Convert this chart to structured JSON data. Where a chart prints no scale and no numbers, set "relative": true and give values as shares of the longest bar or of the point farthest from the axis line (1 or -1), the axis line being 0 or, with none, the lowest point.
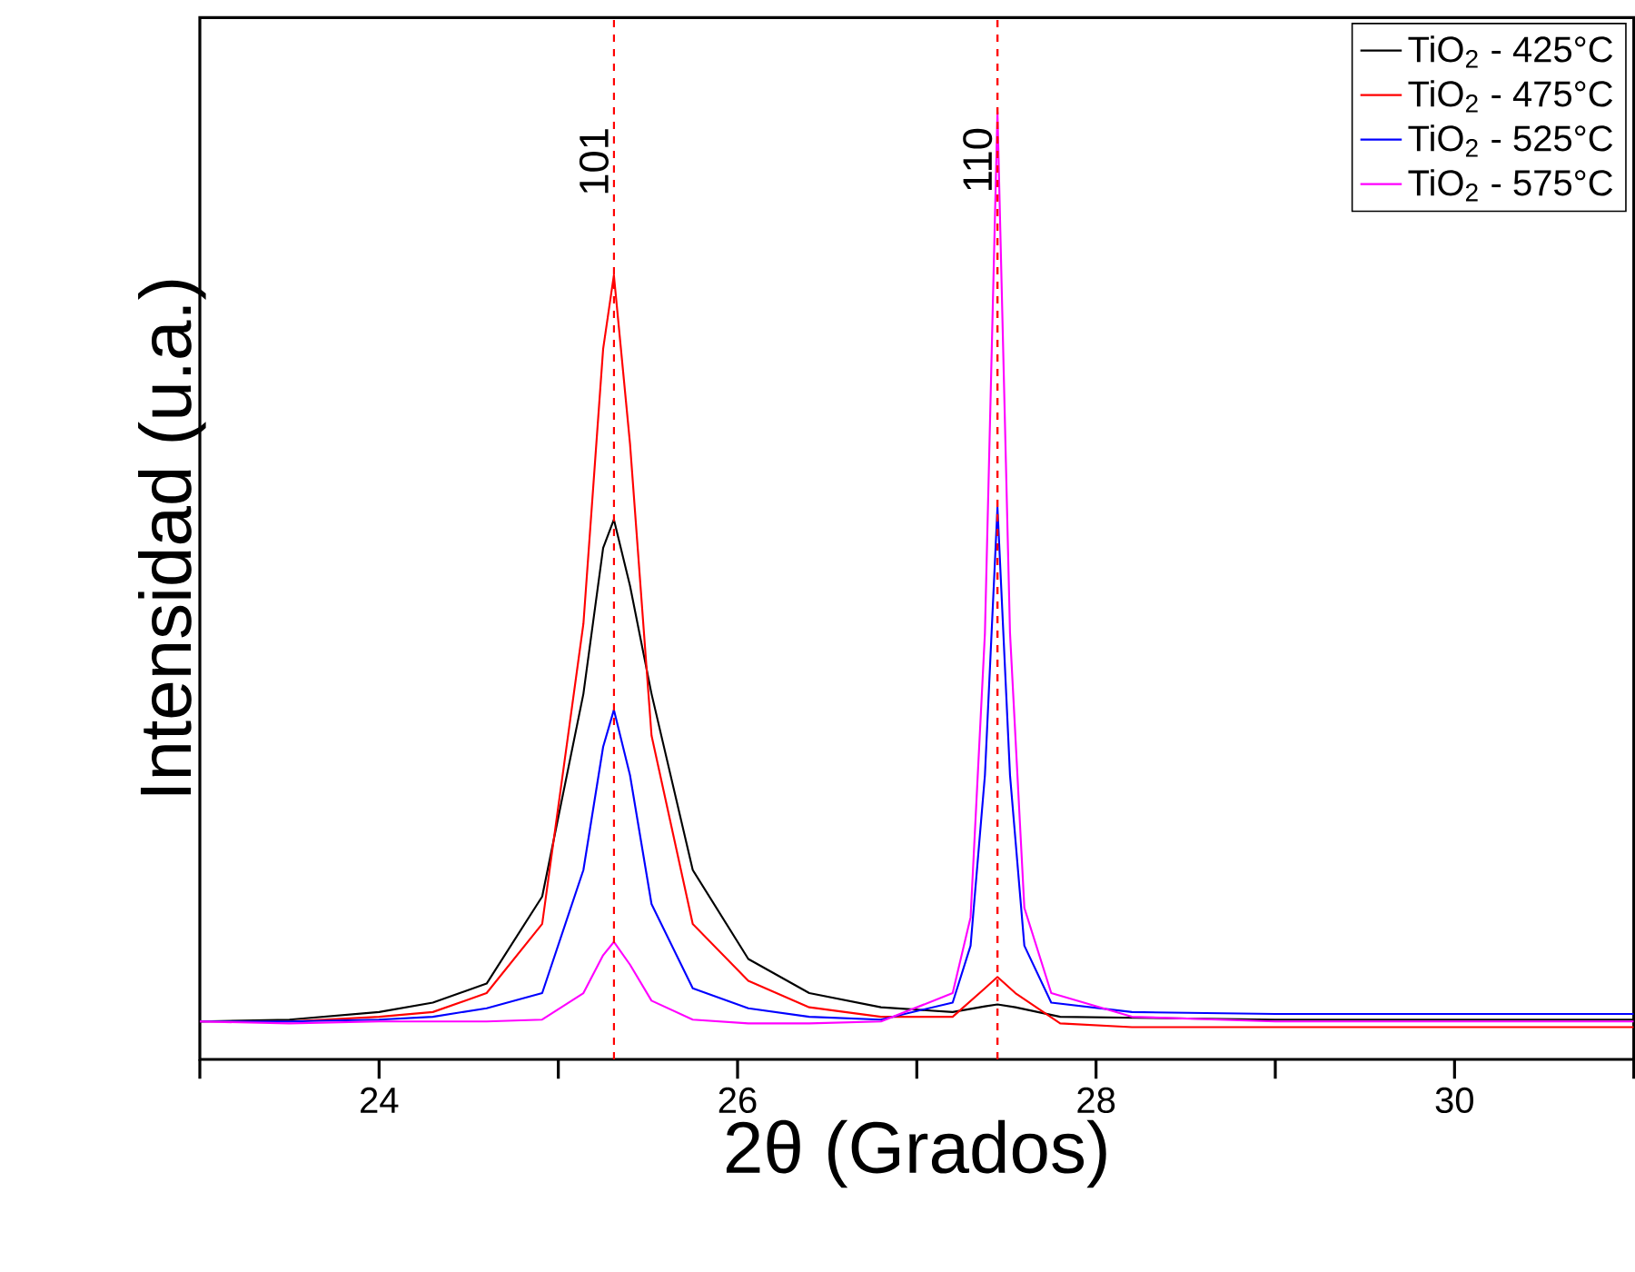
{
  "chart_data": {
    "type": "line",
    "relative": true,
    "xlabel": "2θ (Grados)",
    "ylabel": "Intensidad (u.a.)",
    "xlim": [
      23,
      31
    ],
    "xticks": [
      {
        "value": 23,
        "label": null
      },
      24,
      {
        "value": 25,
        "label": null
      },
      26,
      {
        "value": 27,
        "label": null
      },
      28,
      {
        "value": 29,
        "label": null
      },
      30,
      {
        "value": 31,
        "label": null
      }
    ],
    "legend": "top right",
    "line_style": "solid",
    "marker": "none",
    "series": [
      {
        "name": "TiO$_{2}$ - 425°C",
        "color": "#000000",
        "x": [
          23,
          23.5,
          24,
          24.3,
          24.6,
          24.91,
          25.14,
          25.25,
          25.31,
          25.4,
          25.52,
          25.75,
          26.06,
          26.4,
          26.8,
          27.2,
          27.38,
          27.45,
          27.55,
          27.8,
          28.2,
          29,
          30,
          31
        ],
        "values": [
          0.04,
          0.042,
          0.05,
          0.06,
          0.08,
          0.172,
          0.386,
          0.54,
          0.57,
          0.5,
          0.386,
          0.2,
          0.106,
          0.07,
          0.055,
          0.05,
          0.056,
          0.058,
          0.055,
          0.045,
          0.044,
          0.042,
          0.042,
          0.042
        ]
      },
      {
        "name": "TiO$_{2}$ - 475°C",
        "color": "#ff0000",
        "x": [
          23,
          23.5,
          24,
          24.3,
          24.6,
          24.91,
          25.14,
          25.25,
          25.31,
          25.4,
          25.52,
          25.75,
          26.06,
          26.4,
          26.8,
          27.2,
          27.38,
          27.45,
          27.55,
          27.8,
          28.2,
          29,
          30,
          31
        ],
        "values": [
          0.04,
          0.04,
          0.045,
          0.05,
          0.07,
          0.143,
          0.46,
          0.75,
          0.828,
          0.65,
          0.342,
          0.143,
          0.083,
          0.055,
          0.045,
          0.045,
          0.075,
          0.087,
          0.07,
          0.038,
          0.034,
          0.034,
          0.034,
          0.034
        ]
      },
      {
        "name": "TiO$_{2}$ - 525°C",
        "color": "#0000ff",
        "x": [
          23,
          23.5,
          24,
          24.3,
          24.6,
          24.91,
          25.14,
          25.25,
          25.31,
          25.4,
          25.52,
          25.75,
          26.06,
          26.4,
          26.8,
          27.2,
          27.3,
          27.38,
          27.45,
          27.52,
          27.6,
          27.75,
          28.2,
          29,
          30,
          31
        ],
        "values": [
          0.04,
          0.04,
          0.042,
          0.045,
          0.054,
          0.07,
          0.2,
          0.33,
          0.369,
          0.3,
          0.164,
          0.075,
          0.054,
          0.045,
          0.042,
          0.06,
          0.12,
          0.3,
          0.583,
          0.3,
          0.12,
          0.06,
          0.05,
          0.048,
          0.048,
          0.048
        ]
      },
      {
        "name": "TiO$_{2}$ - 575°C",
        "color": "#ff00ff",
        "x": [
          23,
          23.5,
          24,
          24.6,
          24.91,
          25.14,
          25.25,
          25.31,
          25.4,
          25.52,
          25.75,
          26.06,
          26.4,
          26.8,
          27.2,
          27.3,
          27.38,
          27.45,
          27.52,
          27.6,
          27.75,
          28.2,
          29,
          30,
          31
        ],
        "values": [
          0.04,
          0.038,
          0.04,
          0.04,
          0.042,
          0.07,
          0.11,
          0.124,
          0.1,
          0.062,
          0.042,
          0.038,
          0.038,
          0.04,
          0.07,
          0.15,
          0.45,
          1.0,
          0.45,
          0.16,
          0.07,
          0.045,
          0.04,
          0.04,
          0.04
        ]
      }
    ],
    "ref_lines": [
      {
        "axis": "x",
        "value": 25.31,
        "color": "#ff0000",
        "line_style": "dashed"
      },
      {
        "axis": "x",
        "value": 27.45,
        "color": "#ff0000",
        "line_style": "dashed"
      }
    ],
    "annotations": [
      {
        "text": "101",
        "x": 25.31,
        "y": 1.0
      },
      {
        "text": "110",
        "x": 27.45,
        "y": 1.0
      }
    ]
  }
}
